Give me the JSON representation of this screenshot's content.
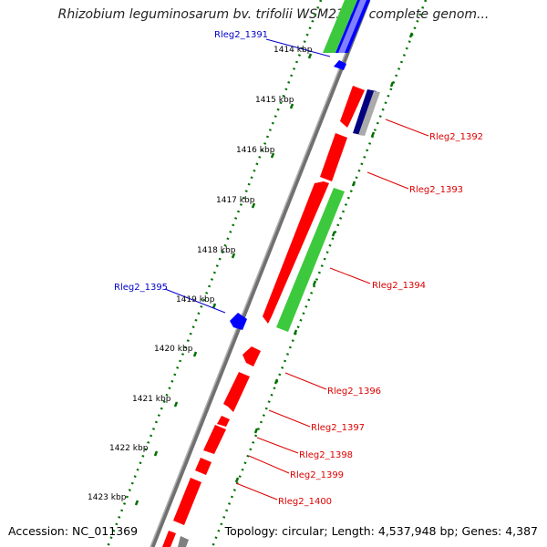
{
  "title": "Rhizobium leguminosarum bv. trifolii WSM2304, complete genom...",
  "accession": "Accession: NC_011369",
  "topology": "Topology: circular; Length: 4,537,948 bp; Genes: 4,387",
  "ticks": [
    "1414 kbp",
    "1415 kbp",
    "1416 kbp",
    "1417 kbp",
    "1418 kbp",
    "1419 kbp",
    "1420 kbp",
    "1421 kbp",
    "1422 kbp",
    "1423 kbp"
  ],
  "gene_labels": {
    "rleg2_1391": "Rleg2_1391",
    "rleg2_1392": "Rleg2_1392",
    "rleg2_1393": "Rleg2_1393",
    "rleg2_1394": "Rleg2_1394",
    "rleg2_1395": "Rleg2_1395",
    "rleg2_1396": "Rleg2_1396",
    "rleg2_1397": "Rleg2_1397",
    "rleg2_1398": "Rleg2_1398",
    "rleg2_1399": "Rleg2_1399",
    "rleg2_1400": "Rleg2_1400"
  },
  "colors": {
    "cds": "#ff0000",
    "rna": "#3dc93d",
    "blue": "#0000ff",
    "navy": "#000080",
    "backbone": "#808080",
    "ticks": "#007000",
    "label_red": "#dd0000",
    "label_blue": "#0000cc"
  }
}
